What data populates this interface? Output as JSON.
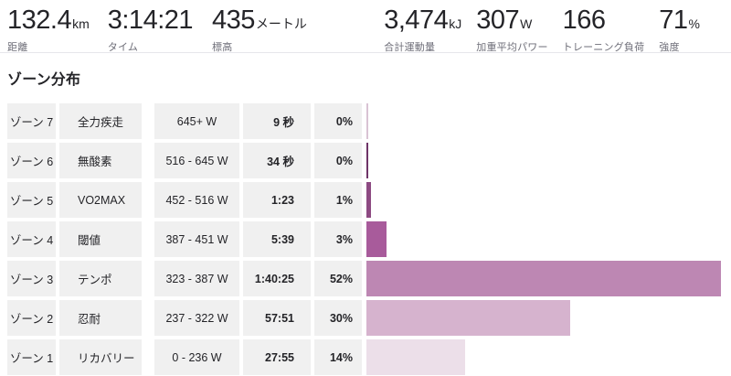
{
  "stats": {
    "left": [
      {
        "value": "132.4",
        "unit": "km",
        "label": "距離"
      },
      {
        "value": "3:14:21",
        "unit": "",
        "label": "タイム"
      },
      {
        "value": "435",
        "unit": "メートル",
        "label": "標高"
      }
    ],
    "right": [
      {
        "value": "3,474",
        "unit": "kJ",
        "label": "合計運動量"
      },
      {
        "value": "307",
        "unit": "W",
        "label": "加重平均パワー"
      },
      {
        "value": "166",
        "unit": "",
        "label": "トレーニング負荷"
      },
      {
        "value": "71",
        "unit": "%",
        "label": "強度"
      }
    ]
  },
  "section": {
    "title": "ゾーン分布"
  },
  "chart_data": {
    "type": "bar",
    "orientation": "horizontal",
    "title": "ゾーン分布",
    "legend": "none",
    "rows": [
      {
        "zone": "ゾーン 7",
        "name": "全力疾走",
        "range": "645+ W",
        "time": "9 秒",
        "percent": "0%",
        "seconds": 9,
        "color": "#d9c3d4"
      },
      {
        "zone": "ゾーン 6",
        "name": "無酸素",
        "range": "516 - 645 W",
        "time": "34 秒",
        "percent": "0%",
        "seconds": 34,
        "color": "#6f3468"
      },
      {
        "zone": "ゾーン 5",
        "name": "VO2MAX",
        "range": "452 - 516 W",
        "time": "1:23",
        "percent": "1%",
        "seconds": 83,
        "color": "#8d4a82"
      },
      {
        "zone": "ゾーン 4",
        "name": "閾値",
        "range": "387 - 451 W",
        "time": "5:39",
        "percent": "3%",
        "seconds": 339,
        "color": "#a85b9b"
      },
      {
        "zone": "ゾーン 3",
        "name": "テンポ",
        "range": "323 - 387 W",
        "time": "1:40:25",
        "percent": "52%",
        "seconds": 6025,
        "color": "#bd87b3"
      },
      {
        "zone": "ゾーン 2",
        "name": "忍耐",
        "range": "237 - 322 W",
        "time": "57:51",
        "percent": "30%",
        "seconds": 3471,
        "color": "#d6b3ce"
      },
      {
        "zone": "ゾーン 1",
        "name": "リカバリー",
        "range": "0 - 236 W",
        "time": "27:55",
        "percent": "14%",
        "seconds": 1675,
        "color": "#ecdfe9"
      }
    ]
  },
  "colors": {
    "cell_bg": "#f0f0f0",
    "text": "#242428",
    "label_gray": "#6e6e78",
    "divider": "#e6e6eb"
  }
}
